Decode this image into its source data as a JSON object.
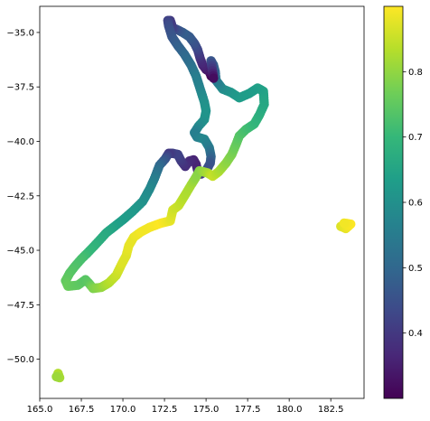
{
  "chart_data": {
    "type": "scatter",
    "title": "",
    "xlabel": "",
    "ylabel": "",
    "xlim": [
      165.0,
      184.5
    ],
    "ylim": [
      -51.8,
      -33.8
    ],
    "xticks": [
      165.0,
      167.5,
      170.0,
      172.5,
      175.0,
      177.5,
      180.0,
      182.5
    ],
    "xtick_labels": [
      "165.0",
      "167.5",
      "170.0",
      "172.5",
      "175.0",
      "177.5",
      "180.0",
      "182.5"
    ],
    "yticks": [
      -35.0,
      -37.5,
      -40.0,
      -42.5,
      -45.0,
      -47.5,
      -50.0
    ],
    "ytick_labels": [
      "−35.0",
      "−37.5",
      "−40.0",
      "−42.5",
      "−45.0",
      "−47.5",
      "−50.0"
    ],
    "grid": false,
    "colormap": "viridis",
    "colorbar": {
      "range": [
        0.3,
        0.9
      ],
      "ticks": [
        0.4,
        0.5,
        0.6,
        0.7,
        0.8
      ],
      "tick_labels": [
        "0.4",
        "0.5",
        "0.6",
        "0.7",
        "0.8"
      ]
    },
    "series": [
      {
        "points": [
          [
            175.3,
            -37.0
          ],
          [
            175.2,
            -36.8
          ],
          [
            175.0,
            -36.7
          ],
          [
            174.8,
            -36.5
          ],
          [
            174.65,
            -36.2
          ],
          [
            174.5,
            -35.8
          ],
          [
            174.3,
            -35.5
          ],
          [
            174.0,
            -35.2
          ],
          [
            173.6,
            -35.0
          ],
          [
            173.2,
            -34.85
          ],
          [
            173.0,
            -34.8
          ],
          [
            172.85,
            -34.45
          ],
          [
            172.7,
            -34.45
          ],
          [
            172.75,
            -34.7
          ],
          [
            172.95,
            -35.2
          ],
          [
            173.3,
            -35.6
          ],
          [
            173.7,
            -36.0
          ],
          [
            174.1,
            -36.5
          ],
          [
            174.4,
            -37.0
          ],
          [
            174.65,
            -37.6
          ],
          [
            174.9,
            -38.2
          ],
          [
            175.0,
            -38.6
          ],
          [
            174.9,
            -39.0
          ],
          [
            174.55,
            -39.3
          ],
          [
            174.3,
            -39.6
          ],
          [
            174.45,
            -39.8
          ],
          [
            174.9,
            -39.9
          ],
          [
            175.2,
            -40.3
          ],
          [
            175.3,
            -40.7
          ],
          [
            175.25,
            -41.0
          ],
          [
            175.0,
            -41.35
          ],
          [
            174.7,
            -41.5
          ],
          [
            174.5,
            -41.35
          ],
          [
            174.4,
            -41.05
          ],
          [
            174.25,
            -40.85
          ],
          [
            174.0,
            -40.9
          ],
          [
            173.75,
            -41.15
          ],
          [
            173.5,
            -40.9
          ],
          [
            173.3,
            -40.6
          ],
          [
            173.0,
            -40.55
          ],
          [
            172.75,
            -40.55
          ],
          [
            172.55,
            -40.8
          ],
          [
            172.2,
            -41.1
          ],
          [
            171.9,
            -41.7
          ],
          [
            171.6,
            -42.2
          ],
          [
            171.2,
            -42.75
          ],
          [
            170.6,
            -43.2
          ],
          [
            170.0,
            -43.6
          ],
          [
            169.5,
            -43.9
          ],
          [
            169.0,
            -44.2
          ],
          [
            168.4,
            -44.7
          ],
          [
            167.9,
            -45.1
          ],
          [
            167.5,
            -45.4
          ],
          [
            167.1,
            -45.75
          ],
          [
            166.8,
            -46.05
          ],
          [
            166.55,
            -46.4
          ],
          [
            166.7,
            -46.65
          ],
          [
            167.3,
            -46.6
          ],
          [
            167.75,
            -46.35
          ],
          [
            168.0,
            -46.55
          ],
          [
            168.2,
            -46.75
          ],
          [
            168.7,
            -46.7
          ],
          [
            169.15,
            -46.5
          ],
          [
            169.6,
            -46.15
          ],
          [
            169.95,
            -45.6
          ],
          [
            170.2,
            -45.25
          ],
          [
            170.35,
            -44.8
          ],
          [
            170.65,
            -44.4
          ],
          [
            171.1,
            -44.15
          ],
          [
            171.6,
            -43.95
          ],
          [
            172.3,
            -43.75
          ],
          [
            172.85,
            -43.65
          ],
          [
            173.0,
            -43.15
          ],
          [
            173.35,
            -42.95
          ],
          [
            173.75,
            -42.45
          ],
          [
            174.1,
            -42.0
          ],
          [
            174.35,
            -41.7
          ],
          [
            174.6,
            -41.35
          ],
          [
            175.1,
            -41.45
          ],
          [
            175.4,
            -41.6
          ],
          [
            175.75,
            -41.4
          ],
          [
            176.2,
            -41.0
          ],
          [
            176.55,
            -40.6
          ],
          [
            176.8,
            -40.15
          ],
          [
            177.0,
            -39.75
          ],
          [
            177.4,
            -39.45
          ],
          [
            177.9,
            -39.2
          ],
          [
            178.2,
            -38.8
          ],
          [
            178.5,
            -38.3
          ],
          [
            178.45,
            -37.7
          ],
          [
            178.1,
            -37.55
          ],
          [
            177.6,
            -37.8
          ],
          [
            177.0,
            -38.0
          ],
          [
            176.5,
            -37.75
          ],
          [
            176.0,
            -37.6
          ],
          [
            175.6,
            -37.2
          ],
          [
            175.55,
            -36.8
          ],
          [
            175.45,
            -36.5
          ],
          [
            175.3,
            -36.3
          ],
          [
            175.45,
            -37.1
          ],
          [
            166.1,
            -50.65
          ],
          [
            166.2,
            -50.85
          ],
          [
            166.0,
            -50.8
          ],
          [
            183.1,
            -43.9
          ],
          [
            183.4,
            -44.0
          ],
          [
            183.7,
            -43.8
          ],
          [
            183.3,
            -43.75
          ]
        ],
        "values": [
          0.3,
          0.32,
          0.34,
          0.36,
          0.38,
          0.42,
          0.45,
          0.47,
          0.48,
          0.45,
          0.42,
          0.4,
          0.42,
          0.44,
          0.46,
          0.48,
          0.5,
          0.52,
          0.55,
          0.57,
          0.6,
          0.61,
          0.61,
          0.59,
          0.56,
          0.56,
          0.58,
          0.55,
          0.5,
          0.46,
          0.44,
          0.4,
          0.37,
          0.36,
          0.36,
          0.37,
          0.38,
          0.4,
          0.42,
          0.42,
          0.4,
          0.45,
          0.5,
          0.55,
          0.58,
          0.6,
          0.62,
          0.63,
          0.64,
          0.66,
          0.68,
          0.7,
          0.72,
          0.73,
          0.74,
          0.75,
          0.76,
          0.75,
          0.74,
          0.75,
          0.78,
          0.8,
          0.83,
          0.85,
          0.87,
          0.87,
          0.88,
          0.88,
          0.89,
          0.89,
          0.9,
          0.88,
          0.86,
          0.85,
          0.83,
          0.82,
          0.8,
          0.79,
          0.82,
          0.85,
          0.83,
          0.8,
          0.78,
          0.76,
          0.74,
          0.72,
          0.7,
          0.68,
          0.66,
          0.65,
          0.64,
          0.63,
          0.63,
          0.62,
          0.6,
          0.55,
          0.5,
          0.48,
          0.46,
          0.32,
          0.83,
          0.82,
          0.81,
          0.87,
          0.88,
          0.9,
          0.89
        ]
      }
    ],
    "colors": {
      "viridis_stops": [
        "#440154",
        "#482878",
        "#3e4989",
        "#31688e",
        "#26828e",
        "#1f9e89",
        "#35b779",
        "#6ece58",
        "#b5de2b",
        "#fde725"
      ]
    }
  }
}
